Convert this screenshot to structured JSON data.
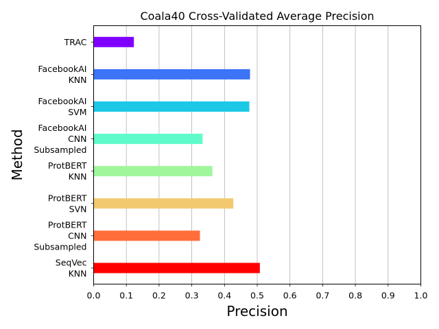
{
  "chart_data": {
    "type": "bar",
    "orientation": "horizontal",
    "title": "Coala40 Cross-Validated Average Precision",
    "xlabel": "Precision",
    "ylabel": "Method",
    "xlim": [
      0.0,
      1.0
    ],
    "xticks": [
      "0.0",
      "0.1",
      "0.2",
      "0.3",
      "0.4",
      "0.5",
      "0.6",
      "0.7",
      "0.8",
      "0.9",
      "1.0"
    ],
    "grid": "vertical",
    "categories": [
      [
        "SeqVec",
        "KNN"
      ],
      [
        "ProtBERT",
        "CNN",
        "Subsampled"
      ],
      [
        "ProtBERT",
        "SVN"
      ],
      [
        "ProtBERT",
        "KNN"
      ],
      [
        "FacebookAI",
        "CNN",
        "Subsampled"
      ],
      [
        "FacebookAI",
        "SVM"
      ],
      [
        "FacebookAI",
        "KNN"
      ],
      [
        "TRAC"
      ]
    ],
    "values": [
      0.508,
      0.325,
      0.427,
      0.363,
      0.333,
      0.476,
      0.478,
      0.123
    ],
    "colors": [
      "#ff0000",
      "#ff6e3a",
      "#f3c970",
      "#a0f79b",
      "#5ffbca",
      "#1cc8e6",
      "#3c74f6",
      "#8000ff"
    ]
  }
}
